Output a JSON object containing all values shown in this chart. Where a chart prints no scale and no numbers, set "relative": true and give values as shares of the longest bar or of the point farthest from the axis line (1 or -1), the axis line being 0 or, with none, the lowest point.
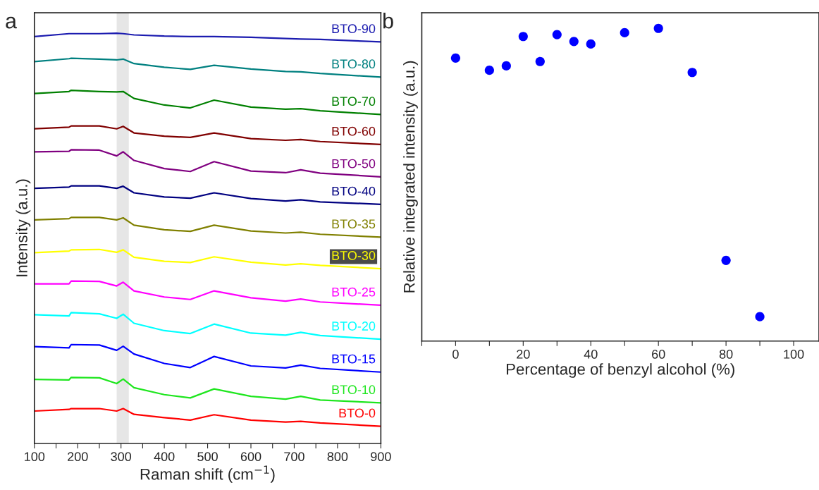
{
  "chart_data": [
    {
      "type": "line",
      "title": "a",
      "xlabel": "Raman shift (cm$^{−1}$)",
      "ylabel": "Intensity (a.u.)",
      "relative": true,
      "legend": false,
      "tick_labels": "x",
      "grid": false,
      "xlim": [
        100,
        900
      ],
      "xticks": [
        100,
        {
          "value": 150,
          "label": null
        },
        200,
        {
          "value": 250,
          "label": null
        },
        300,
        {
          "value": 350,
          "label": null
        },
        400,
        {
          "value": 450,
          "label": null
        },
        500,
        {
          "value": 550,
          "label": null
        },
        600,
        {
          "value": 650,
          "label": null
        },
        700,
        {
          "value": 750,
          "label": null
        },
        800,
        {
          "value": 850,
          "label": null
        },
        900
      ],
      "bands": [
        {
          "axis": "x",
          "from": 290,
          "to": 318,
          "color": "#e6e6e6"
        }
      ],
      "x": [
        100,
        180,
        185,
        250,
        290,
        305,
        330,
        400,
        460,
        515,
        600,
        680,
        715,
        760,
        900
      ],
      "series": [
        {
          "name": "BTO-0",
          "color": "#ff0000",
          "values": [
            0.079,
            0.083,
            0.085,
            0.085,
            0.079,
            0.085,
            0.071,
            0.063,
            0.057,
            0.07,
            0.057,
            0.052,
            0.054,
            0.05,
            0.042
          ]
        },
        {
          "name": "BTO-10",
          "color": "#1ee61e",
          "values": [
            0.156,
            0.155,
            0.161,
            0.16,
            0.146,
            0.157,
            0.136,
            0.119,
            0.111,
            0.133,
            0.115,
            0.108,
            0.115,
            0.106,
            0.099
          ]
        },
        {
          "name": "BTO-15",
          "color": "#0000ff",
          "values": [
            0.236,
            0.233,
            0.241,
            0.24,
            0.227,
            0.237,
            0.218,
            0.195,
            0.185,
            0.212,
            0.189,
            0.184,
            0.191,
            0.183,
            0.174
          ]
        },
        {
          "name": "BTO-20",
          "color": "#00ffff",
          "values": [
            0.314,
            0.311,
            0.319,
            0.316,
            0.305,
            0.315,
            0.293,
            0.275,
            0.268,
            0.291,
            0.269,
            0.264,
            0.271,
            0.263,
            0.254
          ]
        },
        {
          "name": "BTO-25",
          "color": "#ff00ff",
          "values": [
            0.389,
            0.389,
            0.396,
            0.395,
            0.384,
            0.393,
            0.372,
            0.357,
            0.351,
            0.372,
            0.355,
            0.347,
            0.352,
            0.345,
            0.337
          ]
        },
        {
          "name": "BTO-30",
          "color": "#ffff00",
          "values": [
            0.465,
            0.469,
            0.472,
            0.473,
            0.466,
            0.472,
            0.454,
            0.444,
            0.441,
            0.455,
            0.442,
            0.435,
            0.438,
            0.434,
            0.426
          ]
        },
        {
          "name": "BTO-35",
          "color": "#808000",
          "values": [
            0.545,
            0.548,
            0.551,
            0.551,
            0.545,
            0.55,
            0.532,
            0.521,
            0.517,
            0.532,
            0.518,
            0.513,
            0.515,
            0.51,
            0.503
          ]
        },
        {
          "name": "BTO-40",
          "color": "#000080",
          "values": [
            0.622,
            0.625,
            0.628,
            0.628,
            0.622,
            0.627,
            0.611,
            0.601,
            0.598,
            0.611,
            0.597,
            0.591,
            0.594,
            0.589,
            0.583
          ]
        },
        {
          "name": "BTO-50",
          "color": "#800080",
          "values": [
            0.711,
            0.712,
            0.716,
            0.715,
            0.701,
            0.711,
            0.69,
            0.67,
            0.663,
            0.687,
            0.664,
            0.66,
            0.667,
            0.659,
            0.65
          ]
        },
        {
          "name": "BTO-60",
          "color": "#800000",
          "values": [
            0.767,
            0.771,
            0.774,
            0.774,
            0.767,
            0.773,
            0.757,
            0.749,
            0.746,
            0.757,
            0.743,
            0.739,
            0.741,
            0.736,
            0.729
          ]
        },
        {
          "name": "BTO-70",
          "color": "#008000",
          "values": [
            0.853,
            0.858,
            0.861,
            0.858,
            0.857,
            0.858,
            0.841,
            0.825,
            0.818,
            0.837,
            0.82,
            0.815,
            0.816,
            0.811,
            0.802
          ]
        },
        {
          "name": "BTO-80",
          "color": "#008080",
          "values": [
            0.931,
            0.938,
            0.939,
            0.937,
            0.935,
            0.937,
            0.926,
            0.917,
            0.912,
            0.922,
            0.913,
            0.907,
            0.906,
            0.902,
            0.893
          ]
        },
        {
          "name": "BTO-90",
          "color": "#1c1cb0",
          "values": [
            0.992,
            0.999,
            0.999,
            0.999,
            1.0,
            0.999,
            0.996,
            0.993,
            0.992,
            0.992,
            0.99,
            0.987,
            0.986,
            0.985,
            0.979
          ]
        }
      ]
    },
    {
      "type": "scatter",
      "title": "b",
      "xlabel": "Percentage of benzyl alcohol (%)",
      "ylabel": "Relative integrated intensity (a.u.)",
      "relative": true,
      "legend": false,
      "tick_labels": "x",
      "grid": false,
      "marker": "circle",
      "xlim": [
        -10,
        107.5
      ],
      "xticks": [
        {
          "value": -10,
          "label": null
        },
        0,
        {
          "value": 10,
          "label": null
        },
        20,
        {
          "value": 30,
          "label": null
        },
        40,
        {
          "value": 50,
          "label": null
        },
        60,
        {
          "value": 70,
          "label": null
        },
        80,
        {
          "value": 90,
          "label": null
        },
        100
      ],
      "x": [
        0,
        10,
        15,
        20,
        25,
        30,
        35,
        40,
        50,
        60,
        70,
        80,
        90
      ],
      "series": [
        {
          "color": "#0000ff",
          "values": [
            0.905,
            0.866,
            0.88,
            0.974,
            0.894,
            0.98,
            0.958,
            0.95,
            0.986,
            1.0,
            0.859,
            0.258,
            0.078
          ]
        }
      ]
    }
  ]
}
